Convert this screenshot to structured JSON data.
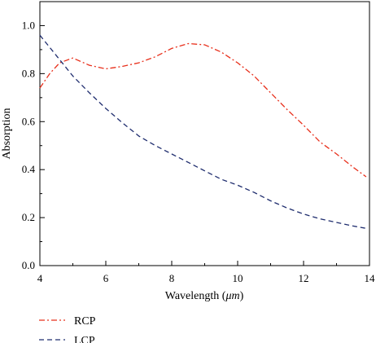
{
  "chart_data": {
    "type": "line",
    "title": "",
    "xlabel_prefix": "Wavelength (",
    "xlabel_unit": "μm",
    "xlabel_suffix": ")",
    "ylabel": "Absorption",
    "xlim": [
      4,
      14
    ],
    "ylim": [
      0,
      1.1
    ],
    "xticks": [
      4,
      6,
      8,
      10,
      12,
      14
    ],
    "xtick_labels": [
      "4",
      "6",
      "8",
      "10",
      "12",
      "14"
    ],
    "yticks": [
      0.0,
      0.2,
      0.4,
      0.6,
      0.8,
      1.0
    ],
    "ytick_labels": [
      "0.0",
      "0.2",
      "0.4",
      "0.6",
      "0.8",
      "1.0"
    ],
    "grid": false,
    "legend_position": "below-left",
    "series": [
      {
        "name": "RCP",
        "color": "#e8301c",
        "dash": "dash-dot",
        "x": [
          4.0,
          4.3,
          4.6,
          5.0,
          5.5,
          6.0,
          6.5,
          7.0,
          7.5,
          8.0,
          8.5,
          9.0,
          9.5,
          10.0,
          10.5,
          11.0,
          11.5,
          12.0,
          12.5,
          13.0,
          13.5,
          13.9
        ],
        "y": [
          0.74,
          0.8,
          0.845,
          0.865,
          0.835,
          0.82,
          0.83,
          0.845,
          0.87,
          0.905,
          0.925,
          0.92,
          0.89,
          0.845,
          0.79,
          0.72,
          0.65,
          0.585,
          0.515,
          0.465,
          0.41,
          0.37
        ]
      },
      {
        "name": "LCP",
        "color": "#1f2d6e",
        "dash": "dash",
        "x": [
          4.0,
          4.5,
          5.0,
          5.5,
          6.0,
          6.5,
          7.0,
          7.5,
          8.0,
          8.5,
          9.0,
          9.5,
          10.0,
          10.5,
          11.0,
          11.5,
          12.0,
          12.5,
          13.0,
          13.5,
          13.9
        ],
        "y": [
          0.96,
          0.875,
          0.79,
          0.72,
          0.655,
          0.595,
          0.54,
          0.5,
          0.465,
          0.43,
          0.395,
          0.36,
          0.335,
          0.305,
          0.27,
          0.24,
          0.215,
          0.195,
          0.18,
          0.165,
          0.155
        ]
      }
    ]
  }
}
